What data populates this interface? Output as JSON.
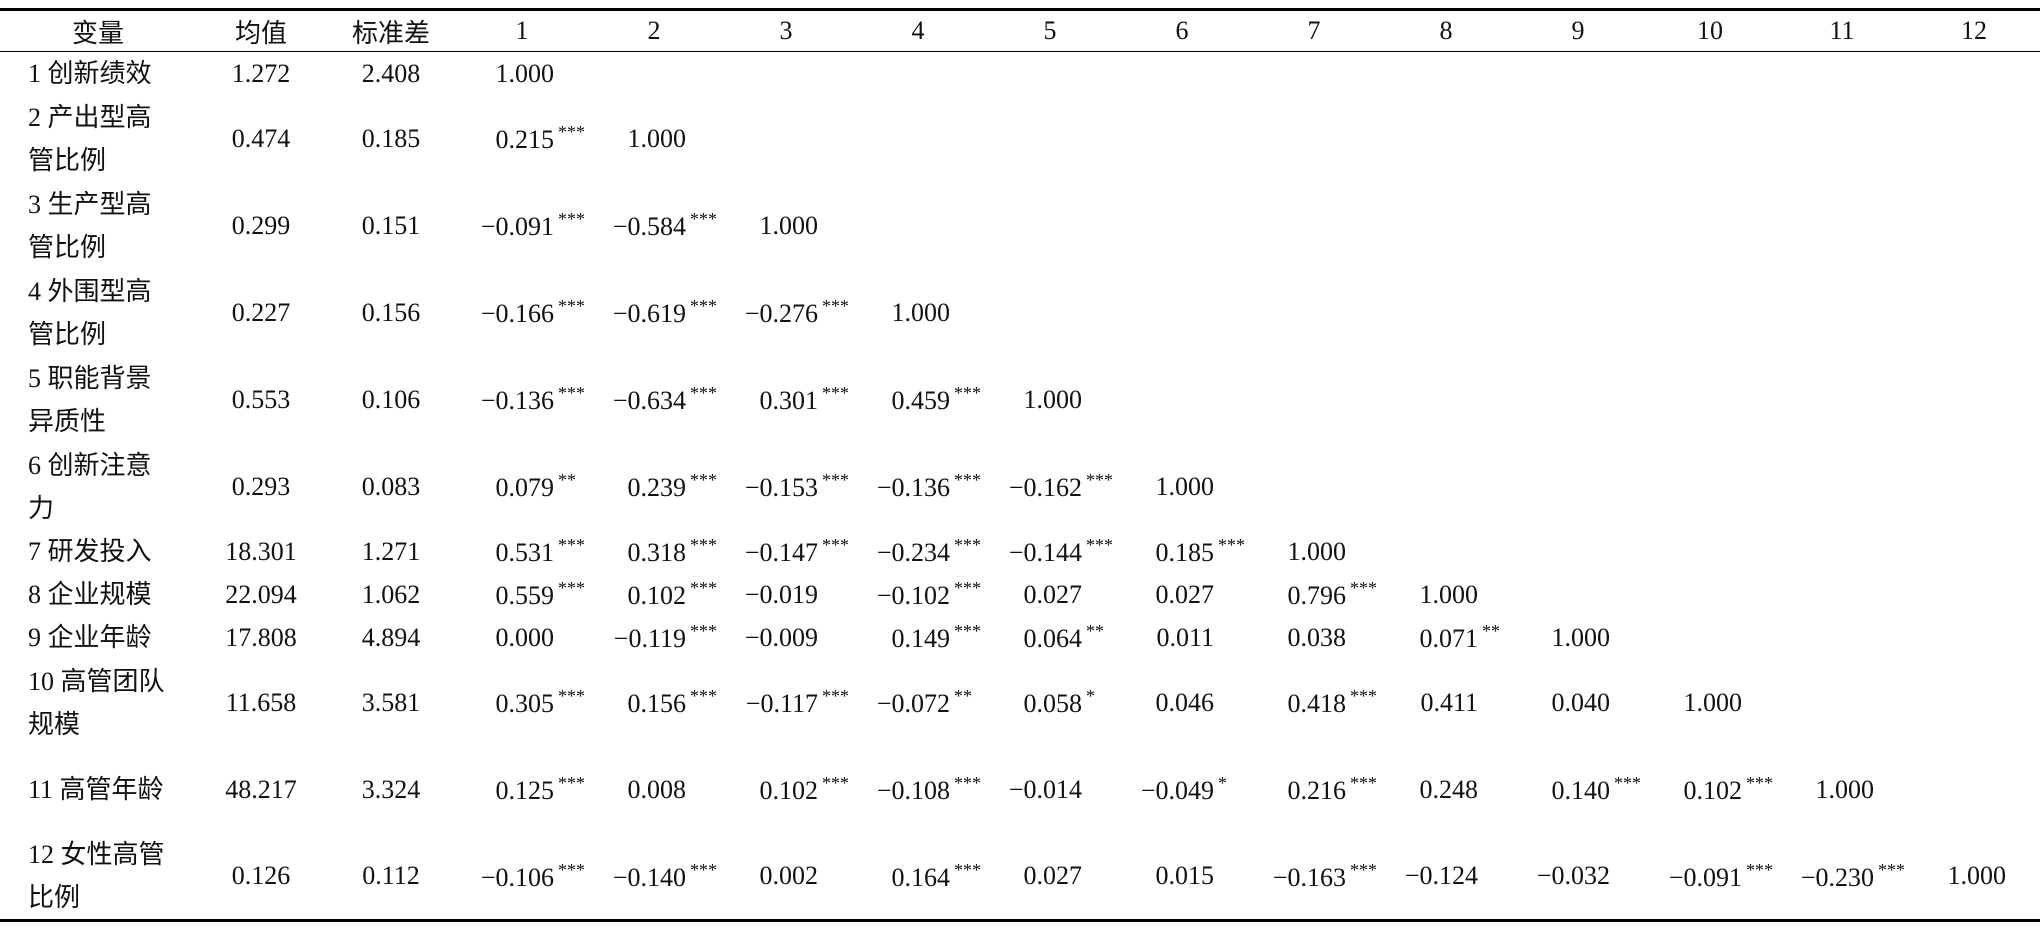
{
  "table": {
    "header": [
      "变量",
      "均值",
      "标准差",
      "1",
      "2",
      "3",
      "4",
      "5",
      "6",
      "7",
      "8",
      "9",
      "10",
      "11",
      "12"
    ],
    "rows": [
      {
        "label": "1 创新绩效",
        "mean": "1.272",
        "sd": "2.408",
        "cells": [
          {
            "value": "1.000"
          }
        ]
      },
      {
        "label": "2 产出型高管比例",
        "mean": "0.474",
        "sd": "0.185",
        "cells": [
          {
            "value": "0.215",
            "stars": "***"
          },
          {
            "value": "1.000"
          }
        ]
      },
      {
        "label": "3 生产型高管比例",
        "mean": "0.299",
        "sd": "0.151",
        "cells": [
          {
            "value": "−0.091",
            "stars": "***"
          },
          {
            "value": "−0.584",
            "stars": "***"
          },
          {
            "value": "1.000"
          }
        ]
      },
      {
        "label": "4 外围型高管比例",
        "mean": "0.227",
        "sd": "0.156",
        "cells": [
          {
            "value": "−0.166",
            "stars": "***"
          },
          {
            "value": "−0.619",
            "stars": "***"
          },
          {
            "value": "−0.276",
            "stars": "***"
          },
          {
            "value": "1.000"
          }
        ]
      },
      {
        "label": "5 职能背景异质性",
        "mean": "0.553",
        "sd": "0.106",
        "cells": [
          {
            "value": "−0.136",
            "stars": "***"
          },
          {
            "value": "−0.634",
            "stars": "***"
          },
          {
            "value": "0.301",
            "stars": "***"
          },
          {
            "value": "0.459",
            "stars": "***"
          },
          {
            "value": "1.000"
          }
        ]
      },
      {
        "label": "6 创新注意力",
        "mean": "0.293",
        "sd": "0.083",
        "cells": [
          {
            "value": "0.079",
            "stars": "**"
          },
          {
            "value": "0.239",
            "stars": "***"
          },
          {
            "value": "−0.153",
            "stars": "***"
          },
          {
            "value": "−0.136",
            "stars": "***"
          },
          {
            "value": "−0.162",
            "stars": "***"
          },
          {
            "value": "1.000"
          }
        ]
      },
      {
        "label": "7 研发投入",
        "mean": "18.301",
        "sd": "1.271",
        "cells": [
          {
            "value": "0.531",
            "stars": "***"
          },
          {
            "value": "0.318",
            "stars": "***"
          },
          {
            "value": "−0.147",
            "stars": "***"
          },
          {
            "value": "−0.234",
            "stars": "***"
          },
          {
            "value": "−0.144",
            "stars": "***"
          },
          {
            "value": "0.185",
            "stars": "***"
          },
          {
            "value": "1.000"
          }
        ]
      },
      {
        "label": "8 企业规模",
        "mean": "22.094",
        "sd": "1.062",
        "cells": [
          {
            "value": "0.559",
            "stars": "***"
          },
          {
            "value": "0.102",
            "stars": "***"
          },
          {
            "value": "−0.019"
          },
          {
            "value": "−0.102",
            "stars": "***"
          },
          {
            "value": "0.027"
          },
          {
            "value": "0.027"
          },
          {
            "value": "0.796",
            "stars": "***"
          },
          {
            "value": "1.000"
          }
        ]
      },
      {
        "label": "9 企业年龄",
        "mean": "17.808",
        "sd": "4.894",
        "cells": [
          {
            "value": "0.000"
          },
          {
            "value": "−0.119",
            "stars": "***"
          },
          {
            "value": "−0.009"
          },
          {
            "value": "0.149",
            "stars": "***"
          },
          {
            "value": "0.064",
            "stars": "**"
          },
          {
            "value": "0.011"
          },
          {
            "value": "0.038"
          },
          {
            "value": "0.071",
            "stars": "**"
          },
          {
            "value": "1.000"
          }
        ]
      },
      {
        "label": "10 高管团队规模",
        "mean": "11.658",
        "sd": "3.581",
        "cells": [
          {
            "value": "0.305",
            "stars": "***"
          },
          {
            "value": "0.156",
            "stars": "***"
          },
          {
            "value": "−0.117",
            "stars": "***"
          },
          {
            "value": "−0.072",
            "stars": "**"
          },
          {
            "value": "0.058",
            "stars": "*"
          },
          {
            "value": "0.046"
          },
          {
            "value": "0.418",
            "stars": "***"
          },
          {
            "value": "0.411"
          },
          {
            "value": "0.040"
          },
          {
            "value": "1.000"
          }
        ]
      },
      {
        "label": "11 高管年龄",
        "mean": "48.217",
        "sd": "3.324",
        "cells": [
          {
            "value": "0.125",
            "stars": "***"
          },
          {
            "value": "0.008"
          },
          {
            "value": "0.102",
            "stars": "***"
          },
          {
            "value": "−0.108",
            "stars": "***"
          },
          {
            "value": "−0.014"
          },
          {
            "value": "−0.049",
            "stars": "*"
          },
          {
            "value": "0.216",
            "stars": "***"
          },
          {
            "value": "0.248"
          },
          {
            "value": "0.140",
            "stars": "***"
          },
          {
            "value": "0.102",
            "stars": "***"
          },
          {
            "value": "1.000"
          }
        ]
      },
      {
        "label": "12 女性高管比例",
        "mean": "0.126",
        "sd": "0.112",
        "cells": [
          {
            "value": "−0.106",
            "stars": "***"
          },
          {
            "value": "−0.140",
            "stars": "***"
          },
          {
            "value": "0.002"
          },
          {
            "value": "0.164",
            "stars": "***"
          },
          {
            "value": "0.027"
          },
          {
            "value": "0.015"
          },
          {
            "value": "−0.163",
            "stars": "***"
          },
          {
            "value": "−0.124"
          },
          {
            "value": "−0.032"
          },
          {
            "value": "−0.091",
            "stars": "***"
          },
          {
            "value": "−0.230",
            "stars": "***"
          },
          {
            "value": "1.000"
          }
        ]
      }
    ]
  }
}
